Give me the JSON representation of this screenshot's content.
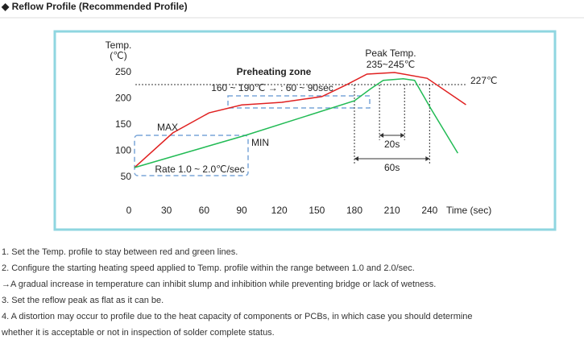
{
  "heading": "◆ Reflow Profile (Recommended Profile)",
  "chart_data": {
    "type": "line",
    "ylabel": [
      "Temp.",
      "(℃)"
    ],
    "xlabel": "Time (sec)",
    "xlim": [
      0,
      270
    ],
    "xticks": [
      0,
      30,
      60,
      90,
      120,
      150,
      180,
      210,
      240
    ],
    "ylim": [
      50,
      250
    ],
    "yticks": [
      50,
      100,
      150,
      200,
      250
    ],
    "series": [
      {
        "name": "MAX",
        "color": "#e02020",
        "x": [
          4.5,
          35,
          64,
          90,
          122,
          154,
          174,
          190,
          212,
          238,
          269
        ],
        "values": [
          68.5,
          134.6,
          173,
          188,
          193,
          204,
          227,
          247,
          250,
          239,
          188.5
        ]
      },
      {
        "name": "MIN",
        "color": "#22bb55",
        "x": [
          4.5,
          93,
          180,
          193,
          203,
          219,
          228,
          241,
          262.5
        ],
        "values": [
          68.5,
          130,
          196,
          219,
          235,
          238,
          235,
          181,
          96
        ]
      }
    ],
    "reference_line": {
      "value": 227,
      "label": "227℃"
    },
    "annotations": {
      "peak_title": "Peak Temp.",
      "peak_range": "235~245℃",
      "preheat_title": "Preheating zone",
      "preheat_text": "160 ~ 190℃ → : 60 ~ 90sec",
      "rate": "Rate  1.0 ~ 2.0℃/sec"
    },
    "spans": [
      {
        "from": 200,
        "to": 220,
        "label": "20s"
      },
      {
        "from": 180,
        "to": 240,
        "label": "60s"
      }
    ]
  },
  "notes": [
    "1. Set the Temp. profile to stay between red and green lines.",
    "2. Configure the starting heating speed applied to Temp. profile within the range between 1.0 and 2.0/sec.",
    "→A gradual increase in temperature can inhibit slump and inhibition while preventing bridge or lack of wetness.",
    "3. Set the reflow peak as flat as it can be.",
    "4. A distortion may occur to profile due to the heat capacity of components or PCBs, in which case you should determine",
    "whether it is acceptable or not in inspection of solder complete status."
  ]
}
